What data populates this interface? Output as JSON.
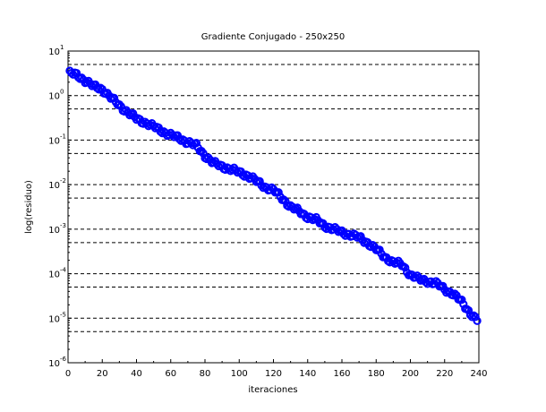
{
  "chart_data": {
    "type": "scatter",
    "title": "Gradiente Conjugado - 250x250",
    "xlabel": "iteraciones",
    "ylabel": "log(residuo)",
    "xlim": [
      0,
      240
    ],
    "ylim": [
      1e-06,
      10
    ],
    "yscale": "log",
    "x_ticks": [
      "0",
      "20",
      "40",
      "60",
      "80",
      "100",
      "120",
      "140",
      "160",
      "180",
      "200",
      "220",
      "240"
    ],
    "y_ticks": [
      {
        "base": "10",
        "exp": "1"
      },
      {
        "base": "10",
        "exp": "0"
      },
      {
        "base": "10",
        "exp": "-1"
      },
      {
        "base": "10",
        "exp": "-2"
      },
      {
        "base": "10",
        "exp": "-3"
      },
      {
        "base": "10",
        "exp": "-4"
      },
      {
        "base": "10",
        "exp": "-5"
      },
      {
        "base": "10",
        "exp": "-6"
      }
    ],
    "grid": "horizontal dashed at 1 and 5 of each decade",
    "marker": "open circle",
    "marker_color": "#0000ff",
    "series": [
      {
        "x_start": 1,
        "x_step": 1,
        "anchors": [
          [
            1,
            3.2
          ],
          [
            5,
            2.9
          ],
          [
            10,
            2.2
          ],
          [
            15,
            1.6
          ],
          [
            20,
            1.4
          ],
          [
            25,
            0.9
          ],
          [
            30,
            0.6
          ],
          [
            35,
            0.42
          ],
          [
            40,
            0.3
          ],
          [
            45,
            0.25
          ],
          [
            50,
            0.2
          ],
          [
            55,
            0.16
          ],
          [
            60,
            0.13
          ],
          [
            65,
            0.11
          ],
          [
            70,
            0.09
          ],
          [
            75,
            0.075
          ],
          [
            80,
            0.045
          ],
          [
            85,
            0.03
          ],
          [
            90,
            0.026
          ],
          [
            95,
            0.022
          ],
          [
            100,
            0.019
          ],
          [
            105,
            0.016
          ],
          [
            110,
            0.012
          ],
          [
            115,
            0.009
          ],
          [
            120,
            0.0075
          ],
          [
            125,
            0.005
          ],
          [
            130,
            0.0032
          ],
          [
            135,
            0.0025
          ],
          [
            140,
            0.0019
          ],
          [
            145,
            0.0016
          ],
          [
            150,
            0.0012
          ],
          [
            155,
            0.001
          ],
          [
            160,
            0.00085
          ],
          [
            165,
            0.00075
          ],
          [
            170,
            0.00065
          ],
          [
            175,
            0.0005
          ],
          [
            180,
            0.00035
          ],
          [
            185,
            0.00024
          ],
          [
            190,
            0.00018
          ],
          [
            195,
            0.00016
          ],
          [
            200,
            9.5e-05
          ],
          [
            205,
            7.5e-05
          ],
          [
            210,
            6.8e-05
          ],
          [
            215,
            6e-05
          ],
          [
            220,
            4.5e-05
          ],
          [
            225,
            3.5e-05
          ],
          [
            230,
            2.3e-05
          ],
          [
            235,
            1.3e-05
          ],
          [
            239,
            9e-06
          ]
        ]
      }
    ]
  }
}
